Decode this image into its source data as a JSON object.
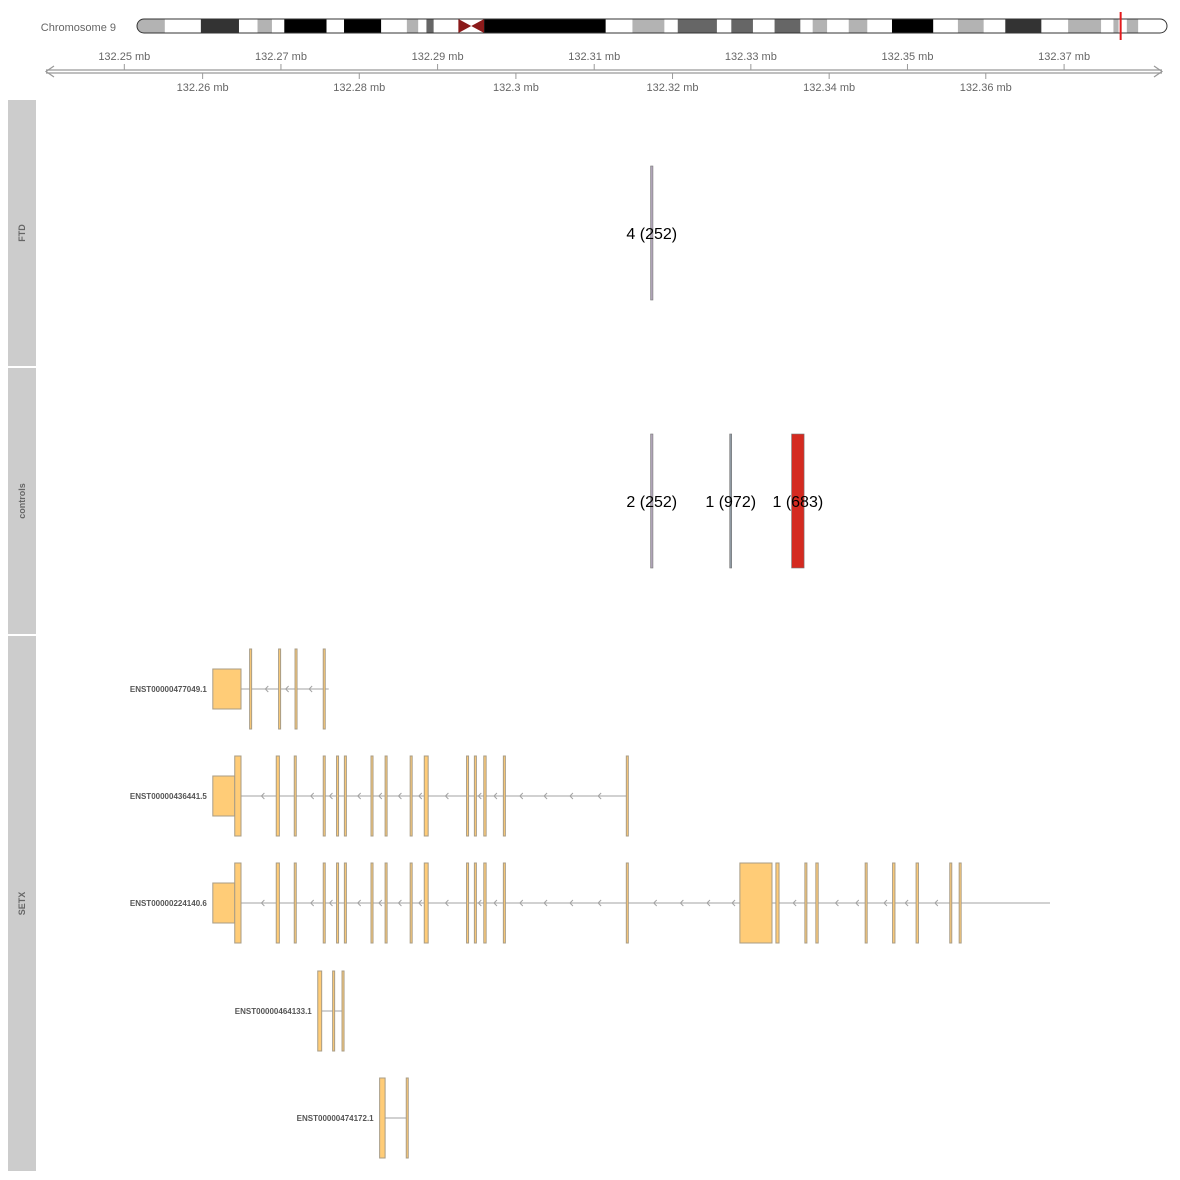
{
  "chromosome": {
    "label": "Chromosome 9",
    "bands": [
      {
        "w": 0.027,
        "color": "#b3b3b3"
      },
      {
        "w": 0.035,
        "color": "#ffffff"
      },
      {
        "w": 0.037,
        "color": "#333333"
      },
      {
        "w": 0.018,
        "color": "#ffffff"
      },
      {
        "w": 0.014,
        "color": "#b3b3b3"
      },
      {
        "w": 0.012,
        "color": "#ffffff"
      },
      {
        "w": 0.041,
        "color": "#000000"
      },
      {
        "w": 0.017,
        "color": "#ffffff"
      },
      {
        "w": 0.036,
        "color": "#000000"
      },
      {
        "w": 0.025,
        "color": "#ffffff"
      },
      {
        "w": 0.011,
        "color": "#b3b3b3"
      },
      {
        "w": 0.008,
        "color": "#ffffff"
      },
      {
        "w": 0.007,
        "color": "#666666"
      },
      {
        "w": 0.024,
        "color": "#ffffff"
      },
      {
        "w": 0.025,
        "color": "#8b1a1a",
        "centromere": "p"
      },
      {
        "w": 0.118,
        "color": "#000000",
        "after_centromere": true
      },
      {
        "w": 0.026,
        "color": "#ffffff"
      },
      {
        "w": 0.031,
        "color": "#b3b3b3"
      },
      {
        "w": 0.013,
        "color": "#ffffff"
      },
      {
        "w": 0.038,
        "color": "#666666"
      },
      {
        "w": 0.014,
        "color": "#ffffff"
      },
      {
        "w": 0.021,
        "color": "#666666"
      },
      {
        "w": 0.021,
        "color": "#ffffff"
      },
      {
        "w": 0.025,
        "color": "#666666"
      },
      {
        "w": 0.012,
        "color": "#ffffff"
      },
      {
        "w": 0.014,
        "color": "#b3b3b3"
      },
      {
        "w": 0.021,
        "color": "#ffffff"
      },
      {
        "w": 0.018,
        "color": "#b3b3b3"
      },
      {
        "w": 0.024,
        "color": "#ffffff"
      },
      {
        "w": 0.04,
        "color": "#000000"
      },
      {
        "w": 0.024,
        "color": "#ffffff"
      },
      {
        "w": 0.025,
        "color": "#b3b3b3"
      },
      {
        "w": 0.021,
        "color": "#ffffff"
      },
      {
        "w": 0.035,
        "color": "#333333"
      },
      {
        "w": 0.026,
        "color": "#ffffff"
      },
      {
        "w": 0.032,
        "color": "#b3b3b3"
      },
      {
        "w": 0.012,
        "color": "#ffffff"
      },
      {
        "w": 0.005,
        "color": "#b3b3b3"
      },
      {
        "w": 0.008,
        "color": "#ffffff"
      },
      {
        "w": 0.011,
        "color": "#b3b3b3"
      },
      {
        "w": 0.028,
        "color": "#ffffff"
      }
    ],
    "highlight_position_fraction": 0.955,
    "highlight_color": "#e31a1c"
  },
  "axis": {
    "range_mb": [
      132.24,
      132.3825
    ],
    "upper_ticks": [
      {
        "value": 132.25,
        "label": "132.25 mb"
      },
      {
        "value": 132.27,
        "label": "132.27 mb"
      },
      {
        "value": 132.29,
        "label": "132.29 mb"
      },
      {
        "value": 132.31,
        "label": "132.31 mb"
      },
      {
        "value": 132.33,
        "label": "132.33 mb"
      },
      {
        "value": 132.35,
        "label": "132.35 mb"
      },
      {
        "value": 132.37,
        "label": "132.37 mb"
      }
    ],
    "lower_ticks": [
      {
        "value": 132.26,
        "label": "132.26 mb"
      },
      {
        "value": 132.28,
        "label": "132.28 mb"
      },
      {
        "value": 132.3,
        "label": "132.3 mb"
      },
      {
        "value": 132.32,
        "label": "132.32 mb"
      },
      {
        "value": 132.34,
        "label": "132.34 mb"
      },
      {
        "value": 132.36,
        "label": "132.36 mb"
      }
    ]
  },
  "tracks": [
    {
      "id": "ftd",
      "label": "FTD",
      "features": [
        {
          "start": 132.3172,
          "end": 132.3175,
          "label": "4 (252)",
          "color": "#b0a4b8"
        }
      ]
    },
    {
      "id": "controls",
      "label": "controls",
      "features": [
        {
          "start": 132.3172,
          "end": 132.3175,
          "label": "2 (252)",
          "color": "#b0a4b8"
        },
        {
          "start": 132.3273,
          "end": 132.3275,
          "label": "1 (972)",
          "color": "#8f9aa3"
        },
        {
          "start": 132.3352,
          "end": 132.3368,
          "label": "1 (683)",
          "color": "#d42a20"
        }
      ]
    }
  ],
  "gene_track": {
    "label": "SETX",
    "exon_color": "#ffcc77",
    "exon_border": "#a89c86",
    "intron_color": "#a3a3a3",
    "transcripts": [
      {
        "name": "ENST00000477049.1",
        "start": 132.2613,
        "end": 132.2761,
        "exons": [
          {
            "s": 132.2613,
            "e": 132.2649,
            "type": "utr"
          },
          {
            "s": 132.266,
            "e": 132.2662
          },
          {
            "s": 132.2697,
            "e": 132.2699
          },
          {
            "s": 132.2718,
            "e": 132.272
          },
          {
            "s": 132.2754,
            "e": 132.2756
          }
        ],
        "arrows": [
          132.268,
          132.2706,
          132.2736
        ]
      },
      {
        "name": "ENST00000436441.5",
        "start": 132.2613,
        "end": 132.3143,
        "exons": [
          {
            "s": 132.2613,
            "e": 132.2641,
            "type": "utr"
          },
          {
            "s": 132.2641,
            "e": 132.2649
          },
          {
            "s": 132.2694,
            "e": 132.2698
          },
          {
            "s": 132.2717,
            "e": 132.2719
          },
          {
            "s": 132.2754,
            "e": 132.2756
          },
          {
            "s": 132.2771,
            "e": 132.2773
          },
          {
            "s": 132.2781,
            "e": 132.2783
          },
          {
            "s": 132.2815,
            "e": 132.2817
          },
          {
            "s": 132.2833,
            "e": 132.2835
          },
          {
            "s": 132.2865,
            "e": 132.2867
          },
          {
            "s": 132.2883,
            "e": 132.2888
          },
          {
            "s": 132.2937,
            "e": 132.2939
          },
          {
            "s": 132.2947,
            "e": 132.2949
          },
          {
            "s": 132.2959,
            "e": 132.2962
          },
          {
            "s": 132.2984,
            "e": 132.2986
          },
          {
            "s": 132.3141,
            "e": 132.3143
          }
        ],
        "arrows": [
          132.2675,
          132.2738,
          132.2762,
          132.2798,
          132.2825,
          132.285,
          132.2876,
          132.291,
          132.2952,
          132.2972,
          132.3005,
          132.3036,
          132.3069,
          132.3105
        ]
      },
      {
        "name": "ENST00000224140.6",
        "start": 132.2613,
        "end": 132.3682,
        "exons": [
          {
            "s": 132.2613,
            "e": 132.2641,
            "type": "utr"
          },
          {
            "s": 132.2641,
            "e": 132.2649
          },
          {
            "s": 132.2694,
            "e": 132.2698
          },
          {
            "s": 132.2717,
            "e": 132.2719
          },
          {
            "s": 132.2754,
            "e": 132.2756
          },
          {
            "s": 132.2771,
            "e": 132.2773
          },
          {
            "s": 132.2781,
            "e": 132.2783
          },
          {
            "s": 132.2815,
            "e": 132.2817
          },
          {
            "s": 132.2833,
            "e": 132.2835
          },
          {
            "s": 132.2865,
            "e": 132.2867
          },
          {
            "s": 132.2883,
            "e": 132.2888
          },
          {
            "s": 132.2937,
            "e": 132.2939
          },
          {
            "s": 132.2947,
            "e": 132.2949
          },
          {
            "s": 132.2959,
            "e": 132.2962
          },
          {
            "s": 132.2984,
            "e": 132.2986
          },
          {
            "s": 132.3141,
            "e": 132.3143
          },
          {
            "s": 132.3286,
            "e": 132.3327
          },
          {
            "s": 132.3332,
            "e": 132.3336
          },
          {
            "s": 132.3369,
            "e": 132.3371
          },
          {
            "s": 132.3383,
            "e": 132.3386
          },
          {
            "s": 132.3446,
            "e": 132.3448
          },
          {
            "s": 132.3481,
            "e": 132.3484
          },
          {
            "s": 132.3511,
            "e": 132.3514
          },
          {
            "s": 132.3554,
            "e": 132.3556
          },
          {
            "s": 132.3566,
            "e": 132.3568
          }
        ],
        "arrows": [
          132.2675,
          132.2738,
          132.2762,
          132.2798,
          132.2825,
          132.285,
          132.2876,
          132.291,
          132.2952,
          132.2972,
          132.3005,
          132.3036,
          132.3069,
          132.3105,
          132.3176,
          132.321,
          132.3244,
          132.3276,
          132.3354,
          132.3408,
          132.3434,
          132.347,
          132.3497,
          132.3535
        ]
      },
      {
        "name": "ENST00000464133.1",
        "start": 132.2747,
        "end": 132.278,
        "exons": [
          {
            "s": 132.2747,
            "e": 132.2752
          },
          {
            "s": 132.2766,
            "e": 132.2768
          },
          {
            "s": 132.2778,
            "e": 132.278
          }
        ],
        "arrows": []
      },
      {
        "name": "ENST00000474172.1",
        "start": 132.2826,
        "end": 132.2862,
        "exons": [
          {
            "s": 132.2826,
            "e": 132.2833
          },
          {
            "s": 132.286,
            "e": 132.2862
          }
        ],
        "arrows": []
      }
    ]
  },
  "colors": {
    "strip_bg": "#cccccc",
    "strip_text": "#666666",
    "axis_color": "#999999",
    "tick_text": "#666666"
  }
}
